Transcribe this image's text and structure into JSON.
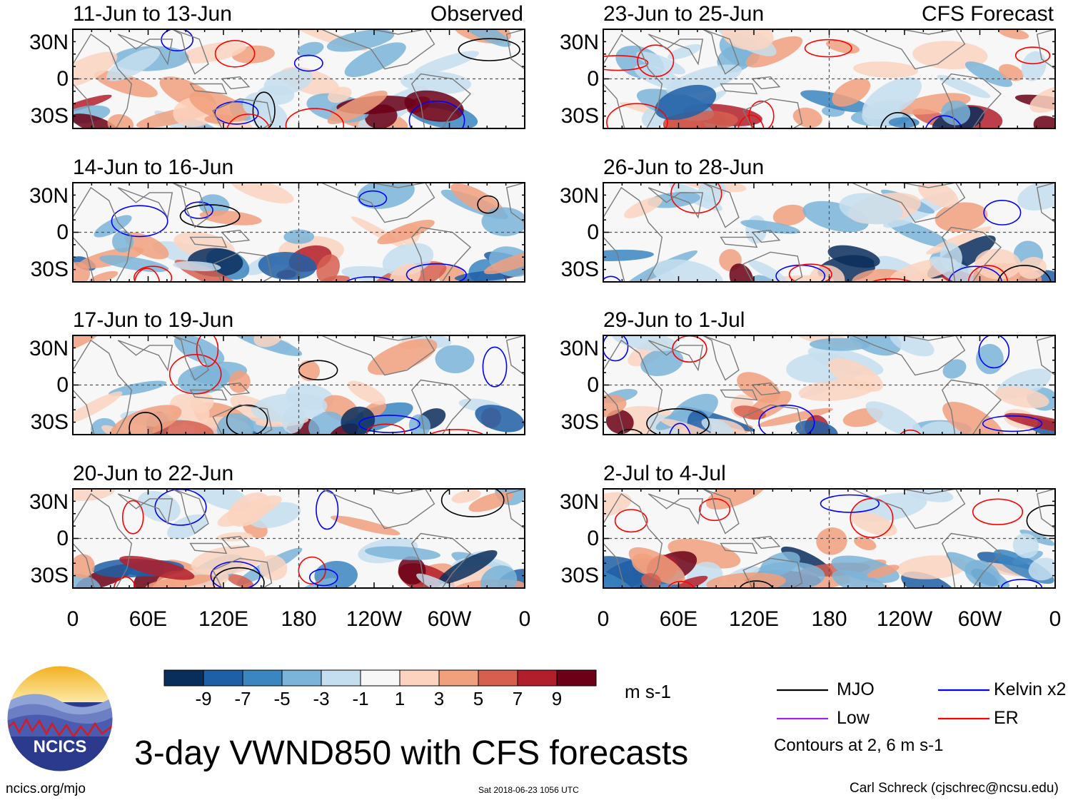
{
  "chart_data": {
    "type": "heatmap",
    "title": "3-day VWND850 with CFS forecasts",
    "variable": "VWND850",
    "units": "m s-1",
    "observed_label": "Observed",
    "forecast_label": "CFS Forecast",
    "panels": [
      {
        "title": "11-Jun to 13-Jun",
        "column": "observed",
        "row": 0
      },
      {
        "title": "14-Jun to 16-Jun",
        "column": "observed",
        "row": 1
      },
      {
        "title": "17-Jun to 19-Jun",
        "column": "observed",
        "row": 2
      },
      {
        "title": "20-Jun to 22-Jun",
        "column": "observed",
        "row": 3
      },
      {
        "title": "23-Jun to 25-Jun",
        "column": "forecast",
        "row": 0
      },
      {
        "title": "26-Jun to 28-Jun",
        "column": "forecast",
        "row": 1
      },
      {
        "title": "29-Jun to 1-Jul",
        "column": "forecast",
        "row": 2
      },
      {
        "title": "2-Jul to 4-Jul",
        "column": "forecast",
        "row": 3
      }
    ],
    "y_ticks": [
      "30N",
      "0",
      "30S"
    ],
    "x_ticks": [
      "0",
      "60E",
      "120E",
      "180",
      "120W",
      "60W",
      "0"
    ],
    "colorbar": {
      "tick_labels": [
        "-9",
        "-7",
        "-5",
        "-3",
        "-1",
        "1",
        "3",
        "5",
        "7",
        "9"
      ],
      "colors": [
        "#0a2e5c",
        "#1f5fa6",
        "#3b85c0",
        "#7bb4d8",
        "#c5deef",
        "#f7f7f7",
        "#fbd3bf",
        "#f1a07e",
        "#d65f4f",
        "#b11f2c",
        "#6b0016"
      ]
    },
    "legend": [
      {
        "label": "MJO",
        "color": "#000000"
      },
      {
        "label": "Low",
        "color": "#a020f0"
      },
      {
        "label": "Kelvin x2",
        "color": "#0000ff"
      },
      {
        "label": "ER",
        "color": "#ff0000"
      }
    ],
    "contour_note": "Contours at 2, 6 m s-1"
  },
  "footer": {
    "logo_text": "NCICS",
    "site": "ncics.org/mjo",
    "timestamp": "Sat 2018-06-23 1056 UTC",
    "credit": "Carl Schreck (cjschrec@ncsu.edu)"
  }
}
